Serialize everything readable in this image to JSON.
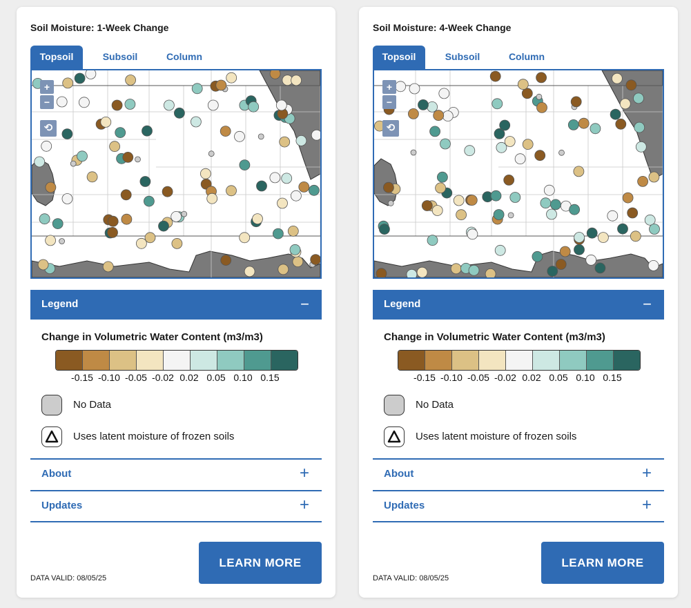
{
  "cards": [
    {
      "title": "Soil Moisture: 1-Week Change",
      "tabs": [
        "Topsoil",
        "Subsoil",
        "Column"
      ],
      "legend_label": "Legend",
      "legend_title": "Change in Volumetric Water Content (m3/m3)",
      "ticks": [
        "-0.15",
        "-0.10",
        "-0.05",
        "-0.02",
        "0.02",
        "0.05",
        "0.10",
        "0.15"
      ],
      "no_data": "No Data",
      "frozen": "Uses latent moisture of frozen soils",
      "about": "About",
      "updates": "Updates",
      "learn_more": "LEARN MORE",
      "data_valid": "DATA VALID: 08/05/25"
    },
    {
      "title": "Soil Moisture: 4-Week Change",
      "tabs": [
        "Topsoil",
        "Subsoil",
        "Column"
      ],
      "legend_label": "Legend",
      "legend_title": "Change in Volumetric Water Content (m3/m3)",
      "ticks": [
        "-0.15",
        "-0.10",
        "-0.05",
        "-0.02",
        "0.02",
        "0.05",
        "0.10",
        "0.15"
      ],
      "no_data": "No Data",
      "frozen": "Uses latent moisture of frozen soils",
      "about": "About",
      "updates": "Updates",
      "learn_more": "LEARN MORE",
      "data_valid": "DATA VALID: 08/05/25"
    }
  ],
  "colors": {
    "accent": "#2f6bb4",
    "ramp": [
      "#8a5a22",
      "#bf8a45",
      "#dcc185",
      "#f3e5c0",
      "#f4f4f4",
      "#cde8e3",
      "#8fcac0",
      "#4f9a90",
      "#2a6560"
    ],
    "no_data": "#cccccc"
  },
  "icons": {
    "zoom_in": "plus-icon",
    "zoom_out": "minus-icon",
    "reset": "reset-view-icon",
    "collapse": "minus-icon",
    "expand": "plus-icon",
    "frozen": "triangle-icon"
  }
}
